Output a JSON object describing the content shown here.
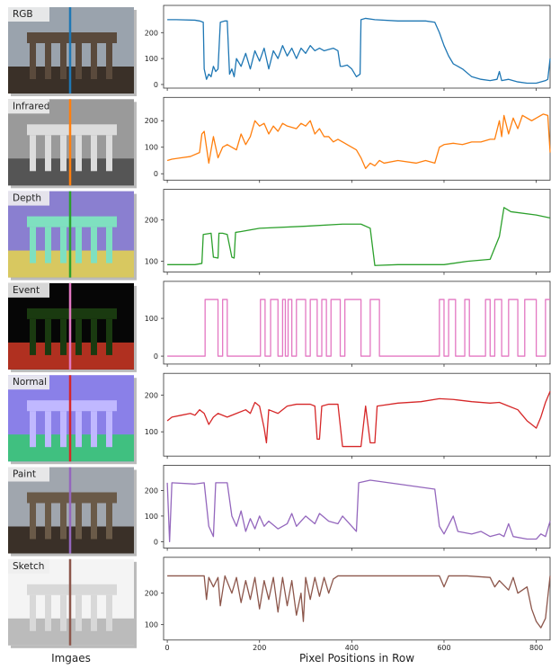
{
  "chart_data": [
    {
      "type": "line",
      "label": "RGB",
      "color": "#1f77b4",
      "xlim": [
        -8,
        830
      ],
      "xticks": [
        0,
        200,
        400,
        600,
        800
      ],
      "ylim": [
        -14,
        305
      ],
      "yticks": [
        0,
        100,
        200
      ],
      "x": [
        0,
        20,
        60,
        70,
        78,
        80,
        85,
        90,
        95,
        100,
        105,
        110,
        115,
        125,
        130,
        135,
        140,
        145,
        150,
        160,
        170,
        180,
        190,
        200,
        210,
        220,
        230,
        240,
        250,
        260,
        270,
        280,
        290,
        300,
        310,
        320,
        330,
        340,
        350,
        360,
        370,
        375,
        380,
        390,
        400,
        410,
        418,
        420,
        430,
        450,
        500,
        560,
        580,
        590,
        600,
        610,
        620,
        640,
        660,
        680,
        700,
        715,
        720,
        725,
        740,
        760,
        780,
        800,
        820,
        825,
        830
      ],
      "values": [
        250,
        250,
        248,
        245,
        240,
        60,
        20,
        40,
        30,
        70,
        50,
        60,
        240,
        245,
        245,
        40,
        60,
        30,
        100,
        70,
        120,
        60,
        130,
        90,
        140,
        60,
        130,
        100,
        150,
        110,
        140,
        100,
        140,
        120,
        150,
        130,
        140,
        130,
        135,
        140,
        130,
        70,
        70,
        75,
        60,
        30,
        40,
        250,
        255,
        250,
        245,
        245,
        240,
        200,
        150,
        110,
        80,
        60,
        30,
        20,
        15,
        20,
        50,
        15,
        20,
        10,
        5,
        5,
        15,
        20,
        100
      ]
    },
    {
      "type": "line",
      "label": "Infrared",
      "color": "#ff7f0e",
      "xlim": [
        -8,
        830
      ],
      "xticks": [
        0,
        200,
        400,
        600,
        800
      ],
      "ylim": [
        -24,
        288
      ],
      "yticks": [
        0,
        100,
        200
      ],
      "x": [
        0,
        10,
        30,
        50,
        70,
        75,
        80,
        85,
        90,
        95,
        100,
        110,
        120,
        130,
        150,
        160,
        170,
        180,
        190,
        200,
        210,
        220,
        230,
        240,
        250,
        260,
        280,
        290,
        300,
        310,
        320,
        330,
        340,
        350,
        360,
        370,
        390,
        410,
        420,
        430,
        440,
        450,
        460,
        470,
        500,
        540,
        560,
        580,
        590,
        600,
        620,
        640,
        660,
        680,
        700,
        710,
        720,
        725,
        730,
        740,
        750,
        760,
        770,
        790,
        800,
        815,
        825,
        830
      ],
      "values": [
        50,
        55,
        60,
        65,
        80,
        150,
        160,
        100,
        40,
        90,
        140,
        60,
        100,
        110,
        90,
        150,
        110,
        140,
        200,
        180,
        190,
        150,
        180,
        160,
        190,
        180,
        170,
        190,
        180,
        200,
        150,
        170,
        140,
        140,
        120,
        130,
        110,
        90,
        60,
        20,
        40,
        30,
        50,
        40,
        50,
        40,
        50,
        40,
        100,
        110,
        115,
        110,
        120,
        120,
        130,
        130,
        200,
        140,
        220,
        150,
        210,
        170,
        220,
        200,
        210,
        225,
        220,
        80
      ]
    },
    {
      "type": "line",
      "label": "Depth",
      "color": "#2ca02c",
      "xlim": [
        -8,
        830
      ],
      "xticks": [
        0,
        200,
        400,
        600,
        800
      ],
      "ylim": [
        74,
        274
      ],
      "yticks": [
        100,
        200
      ],
      "x": [
        0,
        60,
        75,
        78,
        95,
        100,
        110,
        112,
        120,
        130,
        140,
        145,
        148,
        160,
        200,
        300,
        380,
        420,
        440,
        450,
        500,
        600,
        650,
        700,
        720,
        730,
        745,
        800,
        830
      ],
      "values": [
        92,
        92,
        95,
        165,
        168,
        110,
        108,
        168,
        168,
        165,
        110,
        108,
        170,
        172,
        180,
        185,
        190,
        190,
        180,
        90,
        92,
        92,
        100,
        105,
        160,
        230,
        220,
        212,
        205
      ]
    },
    {
      "type": "line",
      "label": "Event",
      "color": "#e377c2",
      "xlim": [
        -8,
        830
      ],
      "xticks": [
        0,
        200,
        400,
        600,
        800
      ],
      "ylim": [
        -21,
        198
      ],
      "yticks": [
        0,
        100
      ],
      "x": [
        0,
        82,
        82,
        110,
        110,
        120,
        120,
        130,
        130,
        202,
        202,
        212,
        212,
        224,
        224,
        240,
        240,
        250,
        250,
        256,
        256,
        262,
        262,
        270,
        270,
        280,
        280,
        300,
        300,
        310,
        310,
        325,
        325,
        335,
        335,
        345,
        345,
        355,
        355,
        375,
        375,
        385,
        385,
        420,
        420,
        440,
        440,
        460,
        460,
        590,
        590,
        600,
        600,
        610,
        610,
        625,
        625,
        645,
        645,
        655,
        655,
        690,
        690,
        700,
        700,
        710,
        710,
        725,
        725,
        740,
        740,
        760,
        760,
        775,
        775,
        800,
        800,
        820,
        820,
        830
      ],
      "values": [
        0,
        0,
        150,
        150,
        0,
        0,
        150,
        150,
        0,
        0,
        150,
        150,
        0,
        0,
        150,
        150,
        0,
        0,
        150,
        150,
        0,
        0,
        150,
        150,
        0,
        0,
        150,
        150,
        0,
        0,
        150,
        150,
        0,
        0,
        150,
        150,
        0,
        0,
        150,
        150,
        0,
        0,
        150,
        150,
        0,
        0,
        150,
        150,
        0,
        0,
        150,
        150,
        0,
        0,
        150,
        150,
        0,
        0,
        150,
        150,
        0,
        0,
        150,
        150,
        0,
        0,
        150,
        150,
        0,
        0,
        150,
        150,
        0,
        0,
        150,
        150,
        0,
        0,
        150,
        150
      ]
    },
    {
      "type": "line",
      "label": "Normal",
      "color": "#d62728",
      "xlim": [
        -8,
        830
      ],
      "xticks": [
        0,
        200,
        400,
        600,
        800
      ],
      "ylim": [
        34,
        259
      ],
      "yticks": [
        100,
        200
      ],
      "x": [
        0,
        10,
        30,
        50,
        60,
        70,
        80,
        90,
        100,
        110,
        130,
        150,
        170,
        180,
        190,
        200,
        210,
        215,
        220,
        240,
        260,
        280,
        300,
        310,
        320,
        325,
        330,
        335,
        350,
        370,
        380,
        420,
        430,
        440,
        450,
        455,
        500,
        550,
        590,
        620,
        660,
        700,
        720,
        740,
        760,
        780,
        790,
        800,
        810,
        820,
        830
      ],
      "values": [
        130,
        140,
        145,
        150,
        145,
        160,
        150,
        120,
        140,
        150,
        140,
        150,
        160,
        150,
        180,
        170,
        110,
        70,
        160,
        150,
        170,
        175,
        175,
        175,
        170,
        80,
        80,
        170,
        175,
        175,
        60,
        60,
        170,
        70,
        70,
        170,
        178,
        182,
        190,
        188,
        182,
        178,
        180,
        170,
        160,
        130,
        120,
        110,
        140,
        180,
        210
      ]
    },
    {
      "type": "line",
      "label": "Paint",
      "color": "#9467bd",
      "xlim": [
        -8,
        830
      ],
      "xticks": [
        0,
        200,
        400,
        600,
        800
      ],
      "ylim": [
        -25,
        298
      ],
      "yticks": [
        0,
        100,
        200
      ],
      "x": [
        0,
        5,
        10,
        60,
        80,
        90,
        100,
        105,
        130,
        140,
        150,
        160,
        170,
        180,
        190,
        200,
        210,
        220,
        240,
        260,
        270,
        280,
        300,
        320,
        330,
        350,
        370,
        380,
        400,
        410,
        415,
        440,
        500,
        580,
        590,
        600,
        620,
        630,
        660,
        680,
        700,
        720,
        730,
        740,
        750,
        780,
        800,
        810,
        820,
        830
      ],
      "values": [
        230,
        0,
        230,
        225,
        230,
        60,
        20,
        230,
        230,
        100,
        60,
        120,
        40,
        90,
        50,
        100,
        60,
        80,
        50,
        70,
        110,
        60,
        100,
        70,
        110,
        80,
        70,
        100,
        60,
        40,
        230,
        240,
        225,
        205,
        60,
        30,
        100,
        40,
        30,
        40,
        20,
        30,
        20,
        70,
        20,
        10,
        10,
        30,
        20,
        80
      ]
    },
    {
      "type": "line",
      "label": "Sketch",
      "color": "#8c564b",
      "xlim": [
        -8,
        830
      ],
      "xticks": [
        0,
        200,
        400,
        600,
        800
      ],
      "ylim": [
        51,
        314
      ],
      "yticks": [
        100,
        200
      ],
      "xlabel": "Pixel Positions in Row",
      "x": [
        0,
        80,
        85,
        90,
        100,
        110,
        115,
        125,
        140,
        150,
        160,
        170,
        180,
        190,
        200,
        210,
        220,
        230,
        240,
        250,
        260,
        270,
        280,
        290,
        295,
        300,
        310,
        320,
        330,
        340,
        350,
        360,
        370,
        400,
        500,
        590,
        600,
        610,
        650,
        700,
        710,
        720,
        740,
        750,
        760,
        780,
        790,
        800,
        810,
        820,
        830
      ],
      "values": [
        255,
        255,
        180,
        250,
        220,
        250,
        160,
        255,
        200,
        250,
        170,
        240,
        180,
        250,
        150,
        240,
        180,
        250,
        140,
        250,
        160,
        240,
        130,
        200,
        110,
        250,
        180,
        250,
        190,
        250,
        200,
        245,
        255,
        255,
        255,
        255,
        220,
        255,
        255,
        250,
        220,
        240,
        210,
        250,
        200,
        220,
        150,
        110,
        90,
        120,
        255
      ]
    }
  ],
  "images_caption": "Imgaes"
}
